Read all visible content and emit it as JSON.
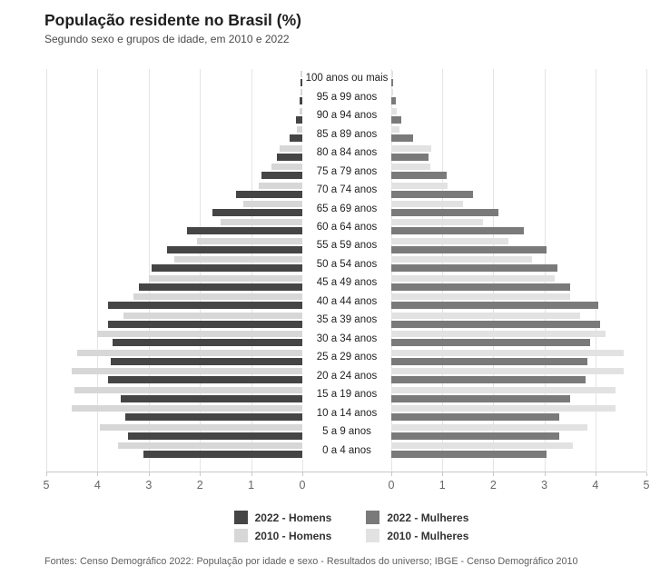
{
  "header": {
    "title": "População residente no Brasil (%)",
    "subtitle": "Segundo sexo e grupos de idade, em 2010 e 2022"
  },
  "axis": {
    "left_ticks": [
      "5",
      "4",
      "3",
      "2",
      "1",
      "0"
    ],
    "right_ticks": [
      "0",
      "1",
      "2",
      "3",
      "4",
      "5"
    ]
  },
  "legend": [
    {
      "label": "2022 - Homens",
      "color": "#454545"
    },
    {
      "label": "2010 - Homens",
      "color": "#d7d7d7"
    },
    {
      "label": "2022 - Mulheres",
      "color": "#7a7a7a"
    },
    {
      "label": "2010 - Mulheres",
      "color": "#e2e2e2"
    }
  ],
  "colors": {
    "men_2022": "#454545",
    "men_2010": "#d7d7d7",
    "women_2022": "#7a7a7a",
    "women_2010": "#e2e2e2",
    "gridline": "#e4e4e4",
    "axis_line": "#c9c9c9"
  },
  "chart_data": {
    "type": "bar",
    "variant": "population-pyramid",
    "title": "População residente no Brasil (%)",
    "subtitle": "Segundo sexo e grupos de idade, em 2010 e 2022",
    "xlim": [
      0,
      5
    ],
    "grid": true,
    "legend_position": "bottom",
    "categories": [
      "100 anos ou mais",
      "95 a 99 anos",
      "90 a 94 anos",
      "85 a 89 anos",
      "80 a 84 anos",
      "75 a 79 anos",
      "70 a 74 anos",
      "65 a 69 anos",
      "60 a 64 anos",
      "55 a 59 anos",
      "50 a 54 anos",
      "45 a 49 anos",
      "40 a 44 anos",
      "35 a 39 anos",
      "30 a 34 anos",
      "25 a 29 anos",
      "20 a 24 anos",
      "15 a 19 anos",
      "10 a 14 anos",
      "5 a 9 anos",
      "0 a 4 anos"
    ],
    "series": [
      {
        "name": "2022 - Homens",
        "side": "left",
        "shade": "dark",
        "color": "#454545",
        "values": [
          0.02,
          0.05,
          0.12,
          0.25,
          0.5,
          0.8,
          1.3,
          1.75,
          2.25,
          2.65,
          2.95,
          3.2,
          3.8,
          3.8,
          3.7,
          3.75,
          3.8,
          3.55,
          3.45,
          3.4,
          3.1
        ]
      },
      {
        "name": "2010 - Homens",
        "side": "left",
        "shade": "light",
        "color": "#d7d7d7",
        "values": [
          0.01,
          0.02,
          0.05,
          0.1,
          0.45,
          0.6,
          0.85,
          1.15,
          1.6,
          2.05,
          2.5,
          3.0,
          3.3,
          3.5,
          4.0,
          4.4,
          4.5,
          4.45,
          4.5,
          3.95,
          3.6
        ]
      },
      {
        "name": "2022 - Mulheres",
        "side": "right",
        "shade": "dark",
        "color": "#7a7a7a",
        "values": [
          0.03,
          0.09,
          0.2,
          0.43,
          0.73,
          1.08,
          1.6,
          2.1,
          2.6,
          3.05,
          3.25,
          3.5,
          4.05,
          4.1,
          3.9,
          3.85,
          3.8,
          3.5,
          3.3,
          3.3,
          3.05
        ]
      },
      {
        "name": "2010 - Mulheres",
        "side": "right",
        "shade": "light",
        "color": "#e2e2e2",
        "values": [
          0.01,
          0.04,
          0.1,
          0.16,
          0.78,
          0.77,
          1.1,
          1.4,
          1.8,
          2.3,
          2.75,
          3.2,
          3.5,
          3.7,
          4.2,
          4.55,
          4.55,
          4.4,
          4.4,
          3.85,
          3.55
        ]
      }
    ]
  },
  "footer": {
    "source": "Fontes: Censo Demográfico 2022: População por idade e sexo - Resultados do universo; IBGE - Censo Demográfico 2010"
  }
}
